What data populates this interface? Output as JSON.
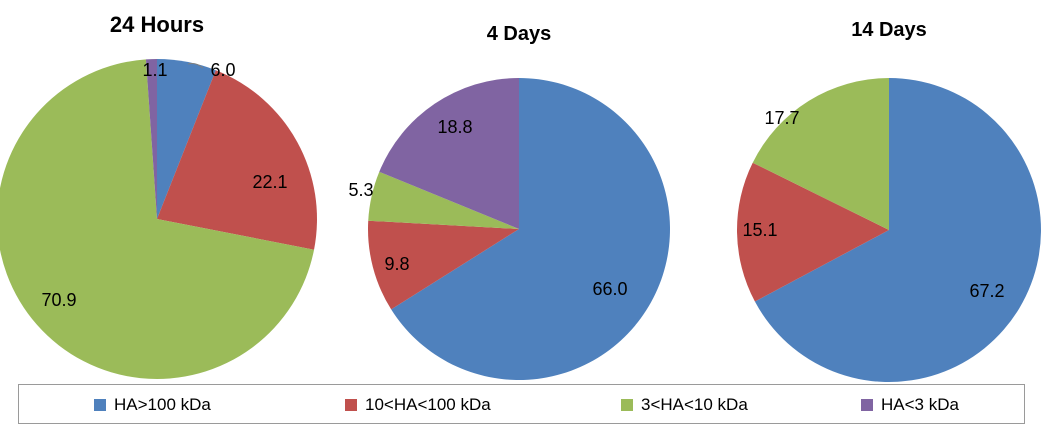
{
  "chart_data": [
    {
      "type": "pie",
      "title": "24 Hours",
      "categories": [
        "HA>100 kDa",
        "10<HA<100 kDa",
        "3<HA<10 kDa",
        "HA<3 kDa"
      ],
      "values": [
        6.0,
        22.1,
        70.9,
        1.1
      ],
      "labels": [
        "6.0",
        "22.1",
        "70.9",
        "1.1"
      ]
    },
    {
      "type": "pie",
      "title": "4 Days",
      "categories": [
        "HA>100 kDa",
        "10<HA<100 kDa",
        "3<HA<10 kDa",
        "HA<3 kDa"
      ],
      "values": [
        66.0,
        9.8,
        5.3,
        18.8
      ],
      "labels": [
        "66.0",
        "9.8",
        "5.3",
        "18.8"
      ]
    },
    {
      "type": "pie",
      "title": "14 Days",
      "categories": [
        "HA>100 kDa",
        "10<HA<100 kDa",
        "3<HA<10 kDa"
      ],
      "values": [
        67.2,
        15.1,
        17.7
      ],
      "labels": [
        "67.2",
        "15.1",
        "17.7"
      ]
    }
  ],
  "legend": {
    "placement": "bottom",
    "items": [
      {
        "label": "HA>100 kDa",
        "color": "#4f81bd"
      },
      {
        "label": "10<HA<100 kDa",
        "color": "#c0504d"
      },
      {
        "label": "3<HA<10 kDa",
        "color": "#9bbb59"
      },
      {
        "label": "HA<3 kDa",
        "color": "#8064a2"
      }
    ]
  }
}
